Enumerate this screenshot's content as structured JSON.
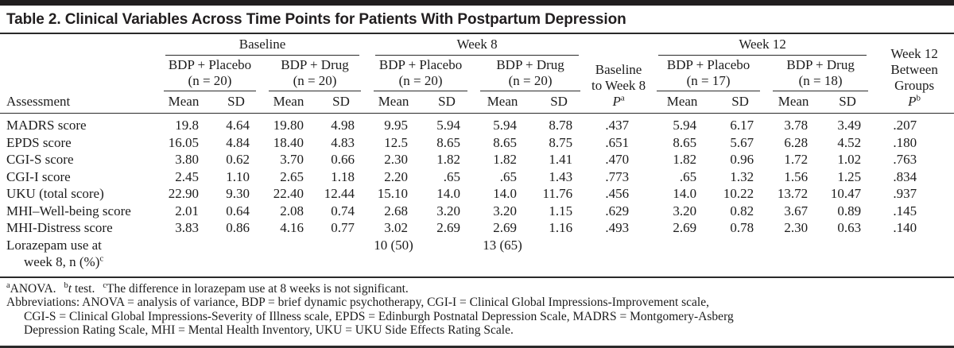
{
  "title": "Table 2. Clinical Variables Across Time Points for Patients With Postpartum Depression",
  "table": {
    "row_header": "Assessment",
    "subheaders": {
      "mean": "Mean",
      "sd": "SD"
    },
    "spanners": [
      {
        "label": "Baseline"
      },
      {
        "label": "Week 8"
      },
      {
        "label": "Week 12"
      }
    ],
    "groups": [
      {
        "name": "BDP + Placebo",
        "n": "(n = 20)"
      },
      {
        "name": "BDP + Drug",
        "n": "(n = 20)"
      },
      {
        "name": "BDP + Placebo",
        "n": "(n = 20)"
      },
      {
        "name": "BDP + Drug",
        "n": "(n = 20)"
      },
      {
        "name": "BDP + Placebo",
        "n": "(n = 17)"
      },
      {
        "name": "BDP + Drug",
        "n": "(n = 18)"
      }
    ],
    "p_columns": [
      {
        "lines": [
          "Baseline",
          "to Week 8"
        ],
        "symbol": "P",
        "sup": "a"
      },
      {
        "lines": [
          "Week 12",
          "Between",
          "Groups"
        ],
        "symbol": "P",
        "sup": "b"
      }
    ],
    "rows": [
      {
        "label": "MADRS score",
        "values": [
          "19.8",
          "4.64",
          "19.80",
          "4.98",
          "9.95",
          "5.94",
          "5.94",
          "8.78",
          ".437",
          "5.94",
          "6.17",
          "3.78",
          "3.49",
          ".207"
        ]
      },
      {
        "label": "EPDS score",
        "values": [
          "16.05",
          "4.84",
          "18.40",
          "4.83",
          "12.5",
          "8.65",
          "8.65",
          "8.75",
          ".651",
          "8.65",
          "5.67",
          "6.28",
          "4.52",
          ".180"
        ]
      },
      {
        "label": "CGI-S score",
        "values": [
          "3.80",
          "0.62",
          "3.70",
          "0.66",
          "2.30",
          "1.82",
          "1.82",
          "1.41",
          ".470",
          "1.82",
          "0.96",
          "1.72",
          "1.02",
          ".763"
        ]
      },
      {
        "label": "CGI-I score",
        "values": [
          "2.45",
          "1.10",
          "2.65",
          "1.18",
          "2.20",
          ".65",
          ".65",
          "1.43",
          ".773",
          ".65",
          "1.32",
          "1.56",
          "1.25",
          ".834"
        ]
      },
      {
        "label": "UKU (total score)",
        "values": [
          "22.90",
          "9.30",
          "22.40",
          "12.44",
          "15.10",
          "14.0",
          "14.0",
          "11.76",
          ".456",
          "14.0",
          "10.22",
          "13.72",
          "10.47",
          ".937"
        ]
      },
      {
        "label": "MHI–Well-being score",
        "values": [
          "2.01",
          "0.64",
          "2.08",
          "0.74",
          "2.68",
          "3.20",
          "3.20",
          "1.15",
          ".629",
          "3.20",
          "0.82",
          "3.67",
          "0.89",
          ".145"
        ]
      },
      {
        "label": "MHI-Distress score",
        "values": [
          "3.83",
          "0.86",
          "4.16",
          "0.77",
          "3.02",
          "2.69",
          "2.69",
          "1.16",
          ".493",
          "2.69",
          "0.78",
          "2.30",
          "0.63",
          ".140"
        ]
      },
      {
        "label_lines": [
          "Lorazepam use at",
          "week 8, n (%)"
        ],
        "label_sup": "c",
        "values": [
          "",
          "",
          "",
          "",
          "10 (50)",
          "",
          "13 (65)",
          "",
          "",
          "",
          "",
          "",
          "",
          ""
        ]
      }
    ]
  },
  "footnotes": {
    "marks": [
      {
        "sup": "a",
        "text": "ANOVA."
      },
      {
        "sup": "b",
        "italic": "t",
        "text": " test."
      },
      {
        "sup": "c",
        "text": "The difference in lorazepam use at 8 weeks is not significant."
      }
    ],
    "abbrev": {
      "line1": "Abbreviations: ANOVA = analysis of variance, BDP = brief dynamic psychotherapy, CGI-I = Clinical Global Impressions-Improvement scale,",
      "line2": "CGI-S = Clinical Global Impressions-Severity of Illness scale, EPDS = Edinburgh Postnatal Depression Scale, MADRS = Montgomery-Asberg",
      "line3": "Depression Rating Scale, MHI = Mental Health Inventory, UKU = UKU Side Effects Rating Scale."
    }
  }
}
